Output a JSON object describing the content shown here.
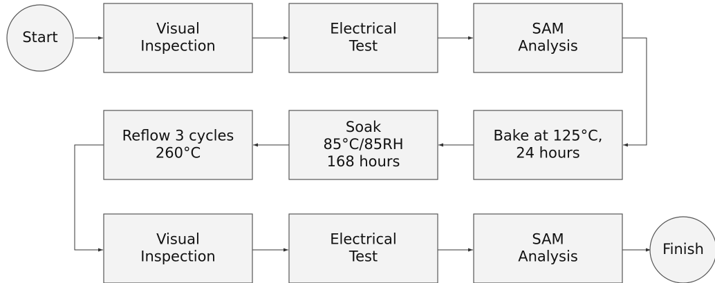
{
  "nodes": [
    {
      "lines": [
        "Start"
      ]
    },
    {
      "lines": [
        "Visual",
        "Inspection"
      ]
    },
    {
      "lines": [
        "Electrical",
        "Test"
      ]
    },
    {
      "lines": [
        "SAM",
        "Analysis"
      ]
    },
    {
      "lines": [
        "Bake at 125°C,",
        "24 hours"
      ]
    },
    {
      "lines": [
        "Soak",
        "85°C/85RH",
        "168 hours"
      ]
    },
    {
      "lines": [
        "Reflow 3 cycles",
        "260°C"
      ]
    },
    {
      "lines": [
        "Visual",
        "Inspection"
      ]
    },
    {
      "lines": [
        "Electrical",
        "Test"
      ]
    },
    {
      "lines": [
        "SAM",
        "Analysis"
      ]
    },
    {
      "lines": [
        "Finish"
      ]
    }
  ]
}
